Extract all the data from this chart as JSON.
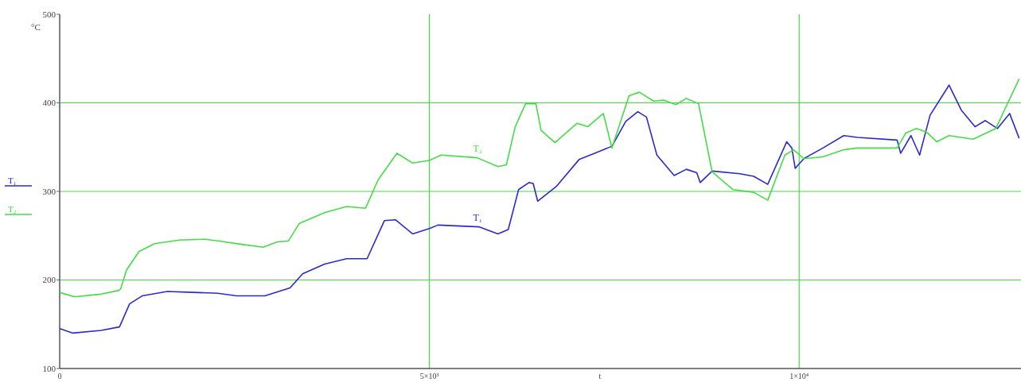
{
  "chart_data": {
    "type": "line",
    "xlabel": "t",
    "ylabel": "°C",
    "xlim": [
      0,
      13000
    ],
    "ylim": [
      100,
      500
    ],
    "xticks": [
      0,
      {
        "value": 5000,
        "label": "5×10³"
      },
      {
        "value": 10000,
        "label": "1×10⁴"
      }
    ],
    "yticks": [
      100,
      200,
      300,
      400,
      500
    ],
    "grid": true,
    "legend": "left",
    "line_style": "solid",
    "marker": "none",
    "series": [
      {
        "name": "T₁",
        "color": "#2a2ad0",
        "x": [
          0,
          179,
          562,
          809,
          945,
          1115,
          1455,
          1796,
          2136,
          2391,
          2774,
          3115,
          3285,
          3583,
          3881,
          4157,
          4391,
          4540,
          4774,
          5000,
          5115,
          5668,
          5926,
          6066,
          6206,
          6346,
          6403,
          6464,
          6721,
          7024,
          7235,
          7468,
          7655,
          7818,
          7935,
          8076,
          8310,
          8474,
          8615,
          8662,
          8823,
          9199,
          9386,
          9575,
          9831,
          9901,
          9947,
          10063,
          10321,
          10603,
          10789,
          11325,
          11372,
          11512,
          11629,
          11770,
          12027,
          12191,
          12378,
          12518,
          12682,
          12846,
          12975
        ],
        "values": [
          145,
          140,
          143,
          147,
          173,
          182,
          187,
          186,
          185,
          182,
          182,
          191,
          207,
          218,
          224,
          224,
          267,
          268,
          252,
          258,
          262,
          260,
          252,
          257,
          302,
          310,
          309,
          289,
          306,
          336,
          343,
          351,
          379,
          390,
          384,
          341,
          318,
          325,
          321,
          310,
          323,
          320,
          317,
          308,
          356,
          349,
          326,
          337,
          349,
          363,
          361,
          358,
          343,
          363,
          341,
          386,
          420,
          392,
          373,
          380,
          371,
          388,
          360
        ]
      },
      {
        "name": "T₂",
        "color": "#44dd44",
        "x": [
          0,
          200,
          562,
          796,
          825,
          902,
          1072,
          1285,
          1625,
          1966,
          2157,
          2476,
          2753,
          2944,
          3093,
          3242,
          3583,
          3881,
          4136,
          4306,
          4561,
          4774,
          5000,
          5157,
          5645,
          5926,
          6041,
          6160,
          6300,
          6440,
          6510,
          6697,
          6997,
          7141,
          7352,
          7468,
          7700,
          7841,
          8030,
          8170,
          8335,
          8474,
          8640,
          8823,
          9106,
          9386,
          9575,
          9807,
          9925,
          10063,
          10321,
          10603,
          10789,
          11325,
          11443,
          11585,
          11723,
          11862,
          12027,
          12354,
          12659,
          12822,
          12975
        ],
        "values": [
          186,
          181,
          184,
          188,
          190,
          211,
          232,
          241,
          245,
          246,
          244,
          240,
          237,
          243,
          244,
          264,
          276,
          283,
          281,
          313,
          343,
          332,
          335,
          341,
          338,
          328,
          330,
          373,
          399,
          399,
          369,
          355,
          377,
          373,
          388,
          349,
          408,
          412,
          402,
          403,
          398,
          405,
          399,
          322,
          302,
          299,
          290,
          341,
          347,
          337,
          339,
          347,
          349,
          349,
          366,
          371,
          367,
          356,
          363,
          359,
          371,
          400,
          427
        ]
      }
    ]
  }
}
